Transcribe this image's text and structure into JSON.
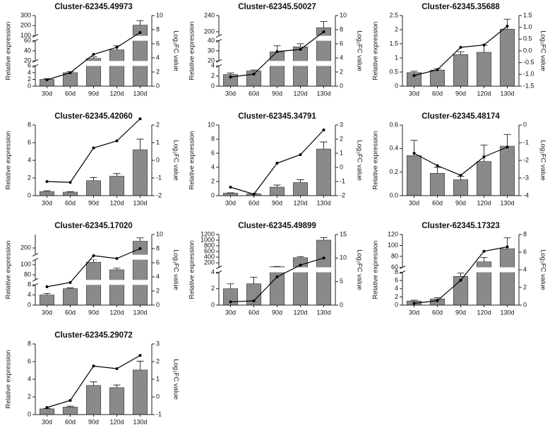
{
  "chart_data": [
    {
      "type": "bar-line",
      "title": "Cluster-62345.49973",
      "ylabel": "Relative expression",
      "y2label": "Log₂FC value",
      "categories": [
        "30d",
        "60d",
        "90d",
        "120d",
        "130d"
      ],
      "ysegments": [
        {
          "ylim": [
            0,
            6
          ],
          "yticks": [
            0,
            2,
            4,
            6
          ]
        },
        {
          "ylim": [
            20,
            60
          ],
          "yticks": [
            20,
            40,
            60
          ]
        },
        {
          "ylim": [
            100,
            300
          ],
          "yticks": [
            100,
            200,
            300
          ]
        }
      ],
      "y2lim": [
        0,
        10
      ],
      "y2ticks": [
        0,
        2,
        4,
        6,
        8,
        10
      ],
      "series": [
        {
          "type": "bar",
          "color": "#8a8a8a",
          "values": [
            2,
            4,
            25,
            42,
            205
          ],
          "errors": [
            0.2,
            0.3,
            3,
            8,
            45
          ]
        },
        {
          "type": "line",
          "color": "#000000",
          "axis": "y2",
          "values": [
            0.9,
            1.9,
            4.5,
            5.5,
            7.6
          ]
        }
      ]
    },
    {
      "type": "bar-line",
      "title": "Cluster-62345.50027",
      "ylabel": "Relative expression",
      "y2label": "Log₂FC value",
      "categories": [
        "30d",
        "60d",
        "90d",
        "120d",
        "130d"
      ],
      "ysegments": [
        {
          "ylim": [
            0,
            4
          ],
          "yticks": [
            0,
            2,
            4
          ]
        },
        {
          "ylim": [
            20,
            40
          ],
          "yticks": [
            20,
            30,
            40
          ]
        },
        {
          "ylim": [
            190,
            240
          ],
          "yticks": [
            200,
            240
          ]
        }
      ],
      "y2lim": [
        0,
        10
      ],
      "y2ticks": [
        0,
        2,
        4,
        6,
        8,
        10
      ],
      "series": [
        {
          "type": "bar",
          "color": "#8a8a8a",
          "values": [
            2.3,
            3,
            29,
            34,
            210
          ],
          "errors": [
            0.3,
            0.2,
            6,
            3,
            15
          ]
        },
        {
          "type": "line",
          "color": "#000000",
          "axis": "y2",
          "values": [
            1.3,
            1.7,
            4.9,
            5.2,
            7.7
          ]
        }
      ]
    },
    {
      "type": "bar-line",
      "title": "Cluster-62345.35688",
      "ylabel": "Relative expression",
      "y2label": "Log₂FC value",
      "categories": [
        "30d",
        "60d",
        "90d",
        "120d",
        "130d"
      ],
      "ylim": [
        0,
        2.5
      ],
      "yticks": [
        0,
        0.5,
        1,
        1.5,
        2,
        2.5
      ],
      "y2lim": [
        -1.5,
        1.5
      ],
      "y2ticks": [
        -1.5,
        {
          "value": -1,
          "label": "-1.0"
        },
        -0.5,
        {
          "value": 0,
          "label": "0.0"
        },
        0.5,
        {
          "value": 1,
          "label": "1.0"
        },
        1.5
      ],
      "series": [
        {
          "type": "bar",
          "color": "#8a8a8a",
          "values": [
            0.48,
            0.57,
            1.12,
            1.2,
            2.02
          ],
          "errors": [
            0.05,
            0.05,
            0.1,
            0.25,
            0.35
          ]
        },
        {
          "type": "line",
          "color": "#000000",
          "axis": "y2",
          "values": [
            -1.05,
            -0.8,
            0.15,
            0.25,
            1.05
          ]
        }
      ]
    },
    {
      "type": "bar-line",
      "title": "Cluster-62345.42060",
      "ylabel": "Relative expression",
      "y2label": "Log₂FC value",
      "categories": [
        "30d",
        "60d",
        "90d",
        "120d",
        "130d"
      ],
      "ylim": [
        0,
        8
      ],
      "yticks": [
        0,
        2,
        4,
        6,
        8
      ],
      "y2lim": [
        -2,
        2
      ],
      "y2ticks": [
        -2,
        -1,
        0,
        1,
        2
      ],
      "series": [
        {
          "type": "bar",
          "color": "#8a8a8a",
          "values": [
            0.45,
            0.4,
            1.7,
            2.2,
            5.2
          ],
          "errors": [
            0.1,
            0.05,
            0.35,
            0.3,
            1.2
          ]
        },
        {
          "type": "line",
          "color": "#000000",
          "axis": "y2",
          "values": [
            -1.2,
            -1.25,
            0.7,
            1.1,
            2.35
          ]
        }
      ]
    },
    {
      "type": "bar-line",
      "title": "Cluster-62345.34791",
      "ylabel": "Relative expression",
      "y2label": "Log₂FC value",
      "categories": [
        "30d",
        "60d",
        "90d",
        "120d",
        "130d"
      ],
      "ylim": [
        0,
        10
      ],
      "yticks": [
        0,
        2,
        4,
        6,
        8,
        10
      ],
      "y2lim": [
        -2,
        3
      ],
      "y2ticks": [
        -2,
        -1,
        0,
        1,
        2,
        3
      ],
      "series": [
        {
          "type": "bar",
          "color": "#8a8a8a",
          "values": [
            0.35,
            0.25,
            1.2,
            1.85,
            6.6
          ],
          "errors": [
            0.05,
            0.05,
            0.3,
            0.4,
            1.0
          ]
        },
        {
          "type": "line",
          "color": "#000000",
          "axis": "y2",
          "values": [
            -1.4,
            -1.9,
            0.3,
            0.9,
            2.65
          ]
        }
      ]
    },
    {
      "type": "bar-line",
      "title": "Cluster-62345.48174",
      "ylabel": "Relative expression",
      "y2label": "Log₂FC value",
      "categories": [
        "30d",
        "60d",
        "90d",
        "120d",
        "130d"
      ],
      "ylim": [
        0,
        0.6
      ],
      "yticks": [
        {
          "value": 0,
          "label": "0.0"
        },
        0.2,
        0.4,
        0.6
      ],
      "y2lim": [
        -4,
        0
      ],
      "y2ticks": [
        -4,
        -3,
        -2,
        -1,
        0
      ],
      "series": [
        {
          "type": "bar",
          "color": "#8a8a8a",
          "values": [
            0.34,
            0.19,
            0.135,
            0.29,
            0.42
          ],
          "errors": [
            0.13,
            0.05,
            0.03,
            0.14,
            0.1
          ]
        },
        {
          "type": "line",
          "color": "#000000",
          "axis": "y2",
          "values": [
            -1.6,
            -2.3,
            -2.85,
            -1.8,
            -1.25
          ]
        }
      ]
    },
    {
      "type": "bar-line",
      "title": "Cluster-62345.17020",
      "ylabel": "Relative expression",
      "y2label": "Log₂FC value",
      "categories": [
        "30d",
        "60d",
        "90d",
        "120d",
        "130d"
      ],
      "ysegments": [
        {
          "ylim": [
            0,
            8
          ],
          "yticks": [
            0,
            4,
            8
          ]
        },
        {
          "ylim": [
            70,
            110
          ],
          "yticks": [
            80,
            100
          ]
        },
        {
          "ylim": [
            150,
            300
          ],
          "yticks": [
            200
          ]
        }
      ],
      "y2lim": [
        0,
        10
      ],
      "y2ticks": [
        0,
        2,
        4,
        6,
        8,
        10
      ],
      "series": [
        {
          "type": "bar",
          "color": "#8a8a8a",
          "values": [
            4,
            6.5,
            105,
            90,
            250
          ],
          "errors": [
            0.6,
            0.3,
            5,
            3,
            25
          ]
        },
        {
          "type": "line",
          "color": "#000000",
          "axis": "y2",
          "values": [
            2.6,
            3.2,
            7,
            6.6,
            8
          ]
        }
      ]
    },
    {
      "type": "bar-line",
      "title": "Cluster-62345.49899",
      "ylabel": "Relative expression",
      "y2label": "Log₂FC value",
      "categories": [
        "30d",
        "60d",
        "90d",
        "120d",
        "130d"
      ],
      "ysegments": [
        {
          "ylim": [
            0,
            4
          ],
          "yticks": [
            0,
            2,
            4
          ]
        },
        {
          "ylim": [
            40,
            1200
          ],
          "yticks": [
            200,
            400,
            600,
            800,
            1000,
            1200
          ]
        }
      ],
      "y2lim": [
        0,
        15
      ],
      "y2ticks": [
        0,
        5,
        10,
        15
      ],
      "series": [
        {
          "type": "bar",
          "color": "#8a8a8a",
          "values": [
            2,
            2.6,
            60,
            380,
            1000
          ],
          "errors": [
            0.6,
            0.8,
            10,
            40,
            90
          ]
        },
        {
          "type": "line",
          "color": "#000000",
          "axis": "y2",
          "values": [
            0.7,
            0.9,
            6,
            8.5,
            10
          ]
        }
      ]
    },
    {
      "type": "bar-line",
      "title": "Cluster-62345.17323",
      "ylabel": "Relative expression",
      "y2label": "Log₂FC value",
      "categories": [
        "30d",
        "60d",
        "90d",
        "120d",
        "130d"
      ],
      "ysegments": [
        {
          "ylim": [
            0,
            8
          ],
          "yticks": [
            0,
            2,
            4,
            6,
            8
          ]
        },
        {
          "ylim": [
            60,
            120
          ],
          "yticks": [
            60,
            80,
            100,
            120
          ]
        }
      ],
      "y2lim": [
        0,
        8
      ],
      "y2ticks": [
        0,
        2,
        4,
        6,
        8
      ],
      "series": [
        {
          "type": "bar",
          "color": "#8a8a8a",
          "values": [
            1,
            1.5,
            7,
            70,
            94
          ],
          "errors": [
            0.2,
            0.3,
            0.8,
            8,
            20
          ]
        },
        {
          "type": "line",
          "color": "#000000",
          "axis": "y2",
          "values": [
            0.2,
            0.5,
            2.8,
            6.1,
            6.6
          ]
        }
      ]
    },
    {
      "type": "bar-line",
      "title": "Cluster-62345.29072",
      "ylabel": "Relative expression",
      "y2label": "Log₂FC value",
      "categories": [
        "30d",
        "60d",
        "90d",
        "120d",
        "130d"
      ],
      "ylim": [
        0,
        8
      ],
      "yticks": [
        0,
        2,
        4,
        6,
        8
      ],
      "y2lim": [
        -1,
        3
      ],
      "y2ticks": [
        -1,
        0,
        1,
        2,
        3
      ],
      "series": [
        {
          "type": "bar",
          "color": "#8a8a8a",
          "values": [
            0.65,
            0.85,
            3.3,
            3.05,
            5.05
          ],
          "errors": [
            0.05,
            0.1,
            0.4,
            0.3,
            1.0
          ]
        },
        {
          "type": "line",
          "color": "#000000",
          "axis": "y2",
          "values": [
            -0.6,
            -0.2,
            1.75,
            1.6,
            2.35
          ]
        }
      ]
    }
  ]
}
